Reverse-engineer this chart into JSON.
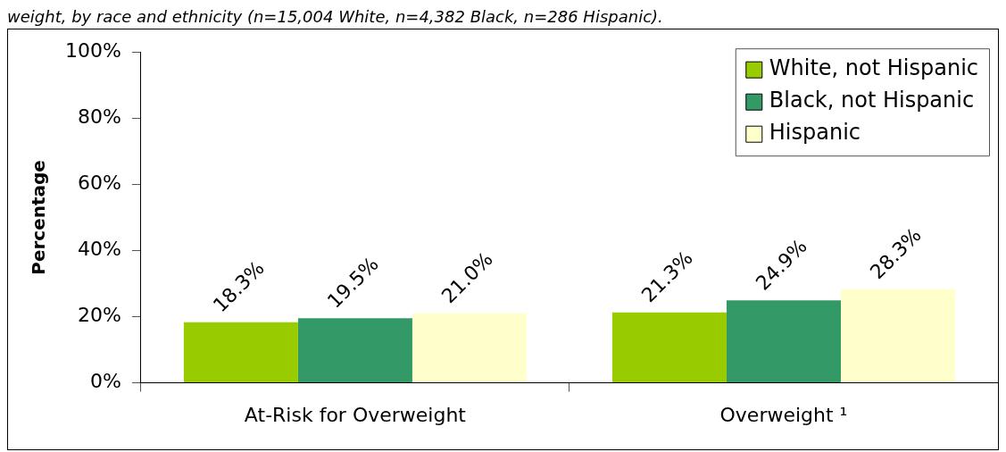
{
  "chart_data": {
    "type": "bar",
    "annotations": [
      "weight, by race and ethnicity (n=15,004 White, n=4,382 Black, n=286 Hispanic)."
    ],
    "ylabel": "Percentage",
    "categories": [
      "At-Risk for Overweight",
      "Overweight ¹"
    ],
    "series": [
      {
        "name": "White, not Hispanic",
        "color": "#99cc00",
        "values": [
          18.3,
          21.3
        ],
        "value_labels": [
          "18.3%",
          "21.3%"
        ]
      },
      {
        "name": "Black, not Hispanic",
        "color": "#339966",
        "values": [
          19.5,
          24.9
        ],
        "value_labels": [
          "19.5%",
          "24.9%"
        ]
      },
      {
        "name": "Hispanic",
        "color": "#ffffcc",
        "values": [
          21.0,
          28.3
        ],
        "value_labels": [
          "21.0%",
          "28.3%"
        ]
      }
    ],
    "ylim": [
      0,
      100
    ],
    "yticks": [
      {
        "value": 0,
        "label": "0%"
      },
      {
        "value": 20,
        "label": "20%"
      },
      {
        "value": 40,
        "label": "40%"
      },
      {
        "value": 60,
        "label": "60%"
      },
      {
        "value": 80,
        "label": "80%"
      },
      {
        "value": 100,
        "label": "100%"
      }
    ],
    "legend": "top right",
    "grid": false
  }
}
